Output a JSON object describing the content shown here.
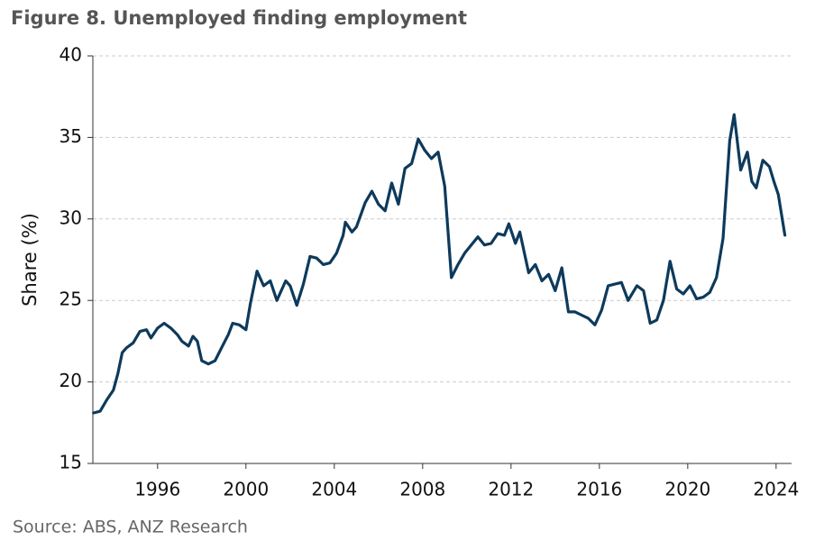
{
  "chart_data": {
    "type": "line",
    "title": "Figure 8. Unemployed finding employment",
    "source": "Source: ABS, ANZ Research",
    "y_label": "Share (%)",
    "color": "#0d3a5c",
    "grid": true,
    "x": [
      1993.1,
      1993.4,
      1993.7,
      1994.0,
      1994.2,
      1994.4,
      1994.6,
      1994.9,
      1995.2,
      1995.5,
      1995.7,
      1996.0,
      1996.3,
      1996.6,
      1996.9,
      1997.1,
      1997.4,
      1997.6,
      1997.8,
      1998.0,
      1998.3,
      1998.6,
      1998.9,
      1999.2,
      1999.4,
      1999.7,
      2000.0,
      2000.2,
      2000.5,
      2000.8,
      2001.1,
      2001.4,
      2001.8,
      2002.0,
      2002.3,
      2002.6,
      2002.9,
      2003.2,
      2003.5,
      2003.8,
      2004.1,
      2004.4,
      2004.5,
      2004.8,
      2005.0,
      2005.4,
      2005.7,
      2006.0,
      2006.3,
      2006.6,
      2006.9,
      2007.2,
      2007.5,
      2007.8,
      2008.1,
      2008.4,
      2008.7,
      2009.0,
      2009.3,
      2009.6,
      2009.9,
      2010.2,
      2010.5,
      2010.8,
      2011.1,
      2011.4,
      2011.7,
      2011.9,
      2012.2,
      2012.4,
      2012.8,
      2013.1,
      2013.4,
      2013.7,
      2014.0,
      2014.3,
      2014.6,
      2014.9,
      2015.2,
      2015.5,
      2015.8,
      2016.1,
      2016.4,
      2016.7,
      2017.0,
      2017.3,
      2017.7,
      2018.0,
      2018.3,
      2018.6,
      2018.9,
      2019.2,
      2019.5,
      2019.8,
      2020.1,
      2020.4,
      2020.7,
      2021.0,
      2021.3,
      2021.6,
      2021.9,
      2022.1,
      2022.4,
      2022.7,
      2022.9,
      2023.1,
      2023.4,
      2023.7,
      2023.9,
      2024.1,
      2024.4
    ],
    "values": [
      18.1,
      18.2,
      18.9,
      19.5,
      20.5,
      21.8,
      22.1,
      22.4,
      23.1,
      23.2,
      22.7,
      23.3,
      23.6,
      23.3,
      22.9,
      22.5,
      22.2,
      22.8,
      22.5,
      21.3,
      21.1,
      21.3,
      22.1,
      22.9,
      23.6,
      23.5,
      23.2,
      24.8,
      26.8,
      25.9,
      26.2,
      25.0,
      26.2,
      25.9,
      24.7,
      26.0,
      27.7,
      27.6,
      27.2,
      27.3,
      27.9,
      29.0,
      29.8,
      29.2,
      29.5,
      31.0,
      31.7,
      30.9,
      30.5,
      32.2,
      30.9,
      33.1,
      33.4,
      34.9,
      34.2,
      33.7,
      34.1,
      32.0,
      26.4,
      27.2,
      27.9,
      28.4,
      28.9,
      28.4,
      28.5,
      29.1,
      29.0,
      29.7,
      28.5,
      29.2,
      26.7,
      27.2,
      26.2,
      26.6,
      25.6,
      27.0,
      24.3,
      24.3,
      24.1,
      23.9,
      23.5,
      24.4,
      25.9,
      26.0,
      26.1,
      25.0,
      25.9,
      25.6,
      23.6,
      23.8,
      25.0,
      27.4,
      25.7,
      25.4,
      25.9,
      25.1,
      25.2,
      25.5,
      26.4,
      28.8,
      34.8,
      36.4,
      33.0,
      34.1,
      32.3,
      31.9,
      33.6,
      33.2,
      32.3,
      31.5,
      29.0
    ],
    "xlim": [
      1993.07,
      2024.7
    ],
    "xticks": [
      1996,
      2000,
      2004,
      2008,
      2012,
      2016,
      2020,
      2024
    ],
    "ylim": [
      15,
      40
    ],
    "yticks": [
      15,
      20,
      25,
      30,
      35,
      40
    ]
  }
}
